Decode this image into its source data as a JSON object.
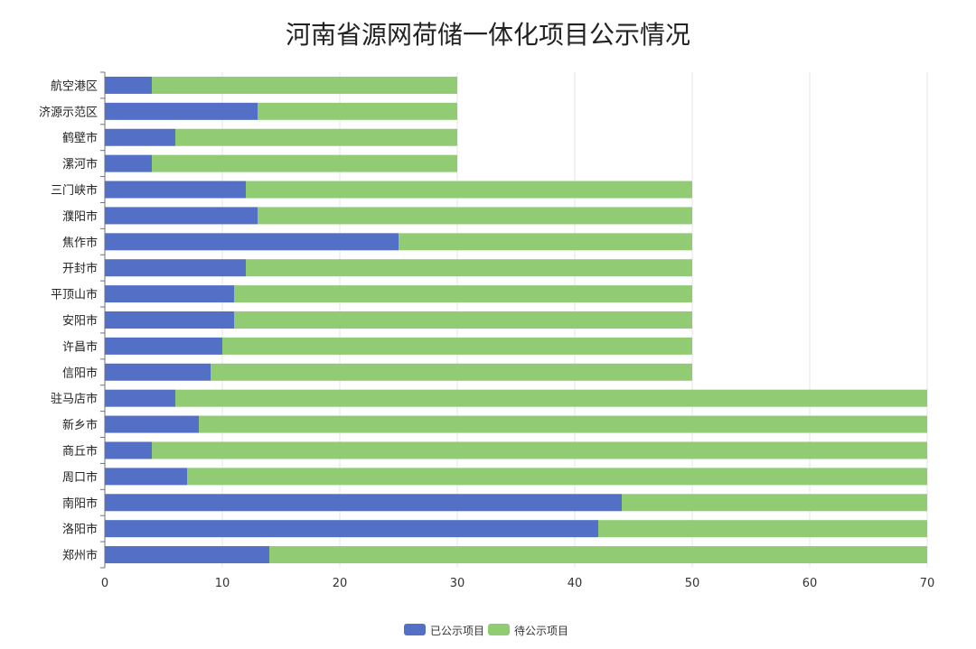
{
  "chart_data": {
    "type": "bar",
    "orientation": "horizontal",
    "stacked": true,
    "title": "河南省源网荷储一体化项目公示情况",
    "categories": [
      "航空港区",
      "济源示范区",
      "鹤壁市",
      "漯河市",
      "三门峡市",
      "濮阳市",
      "焦作市",
      "开封市",
      "平顶山市",
      "安阳市",
      "许昌市",
      "信阳市",
      "驻马店市",
      "新乡市",
      "商丘市",
      "周口市",
      "南阳市",
      "洛阳市",
      "郑州市"
    ],
    "series": [
      {
        "name": "已公示项目",
        "color": "#5470c6",
        "values": [
          4,
          13,
          6,
          4,
          12,
          13,
          25,
          12,
          11,
          11,
          10,
          9,
          6,
          8,
          4,
          7,
          44,
          42,
          14
        ]
      },
      {
        "name": "待公示项目",
        "color": "#91cc75",
        "values": [
          26,
          17,
          24,
          26,
          38,
          37,
          25,
          38,
          39,
          39,
          40,
          41,
          64,
          62,
          66,
          63,
          26,
          28,
          56
        ]
      }
    ],
    "xlim": [
      0,
      70
    ],
    "xticks": [
      0,
      10,
      20,
      30,
      40,
      50,
      60,
      70
    ],
    "grid": true,
    "legend_position": "bottom-center"
  }
}
